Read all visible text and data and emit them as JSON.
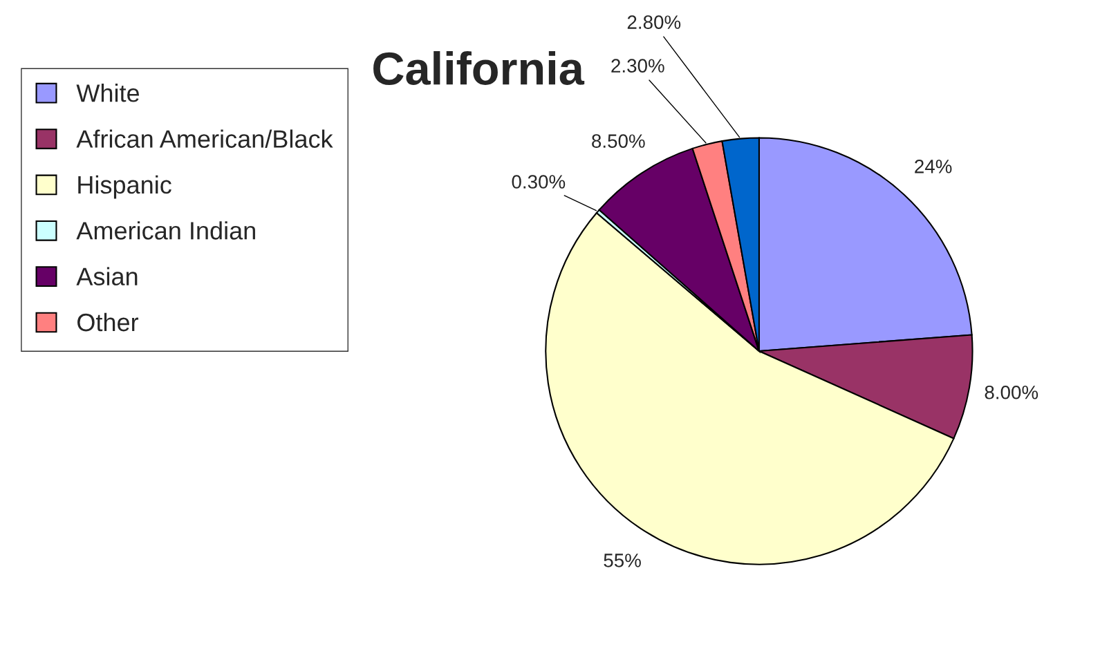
{
  "chart_data": {
    "type": "pie",
    "title": "California",
    "categories": [
      "White",
      "African American/Black",
      "Hispanic",
      "American Indian",
      "Asian",
      "Other",
      null
    ],
    "values": [
      24,
      8.0,
      55,
      0.3,
      8.5,
      2.3,
      2.8
    ],
    "value_labels": [
      "24%",
      "8.00%",
      "55%",
      "0.30%",
      "8.50%",
      "2.30%",
      "2.80%"
    ],
    "colors": [
      "#9999ff",
      "#993366",
      "#ffffcc",
      "#ccffff",
      "#660066",
      "#ff8080",
      "#0066cc"
    ],
    "legend": "top left"
  }
}
